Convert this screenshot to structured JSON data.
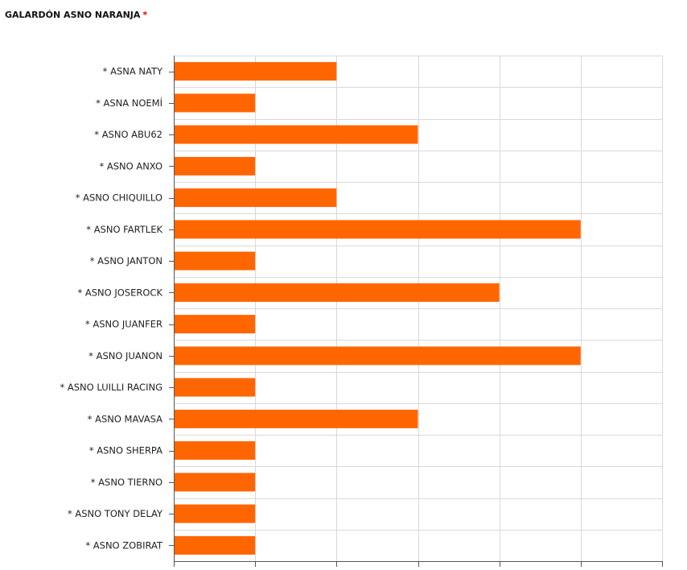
{
  "header": {
    "title": "GALARDÓN ASNO NARANJA",
    "required_mark": "*"
  },
  "chart_data": {
    "type": "bar",
    "orientation": "horizontal",
    "title": "",
    "xlabel": "",
    "ylabel": "",
    "categories": [
      "* ASNA NATY",
      "* ASNA NOEMÍ",
      "* ASNO ABU62",
      "* ASNO ANXO",
      "* ASNO CHIQUILLO",
      "* ASNO FARTLEK",
      "* ASNO JANTON",
      "* ASNO JOSEROCK",
      "* ASNO JUANFER",
      "* ASNO JUANON",
      "* ASNO LUILLI RACING",
      "* ASNO MAVASA",
      "* ASNO SHERPA",
      "* ASNO TIERNO",
      "* ASNO TONY DELAY",
      "* ASNO ZOBIRAT"
    ],
    "values": [
      2,
      1,
      3,
      1,
      2,
      5,
      1,
      4,
      1,
      5,
      1,
      3,
      1,
      1,
      1,
      1
    ],
    "xlim": [
      0,
      6
    ],
    "grid": true,
    "bar_color": "#ff6600",
    "grid_color": "#d9d9d9",
    "axis_color": "#555555"
  }
}
